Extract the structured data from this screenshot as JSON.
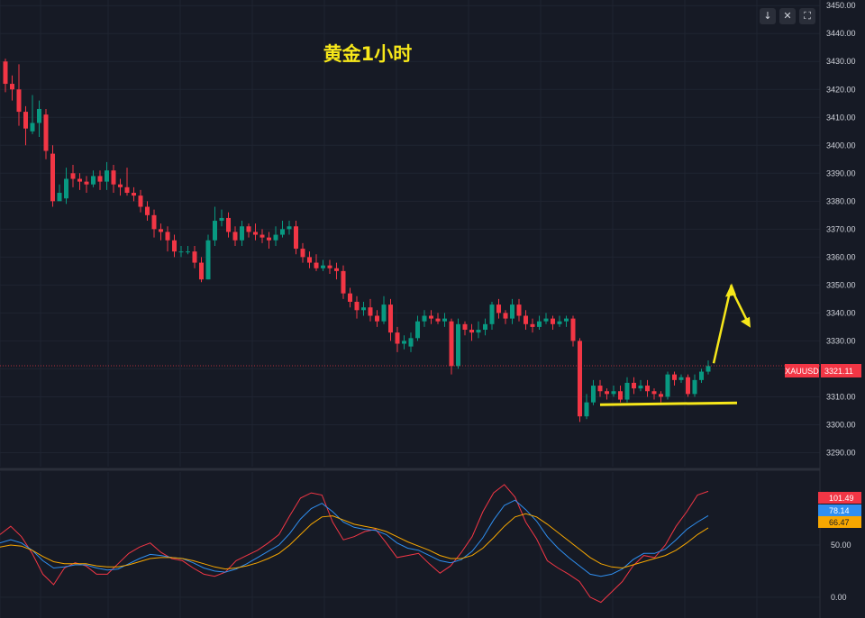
{
  "toolbar": {
    "collapse_icon": "arrow-down-icon",
    "collapse_glyph": "↓",
    "expand_icon": "expand-arrows-icon",
    "expand_glyph": "✕",
    "fullscreen_icon": "fullscreen-icon",
    "fullscreen_glyph": "⛶"
  },
  "chart_data": [
    {
      "type": "candlestick",
      "title": "黄金1小时",
      "symbol": "XAUUSD",
      "current_price": "3321.11",
      "ylim": [
        3285,
        3452
      ],
      "yticks": [
        "3290.00",
        "3300.00",
        "3310.00",
        "3320.00",
        "3330.00",
        "3340.00",
        "3350.00",
        "3360.00",
        "3370.00",
        "3380.00",
        "3390.00",
        "3400.00",
        "3410.00",
        "3420.00",
        "3430.00",
        "3440.00",
        "3450.00"
      ],
      "grid": true,
      "colors": {
        "up": "#089981",
        "down": "#f23645",
        "annotation": "#f6e71a",
        "background": "#161a25"
      },
      "candles": [
        [
          3430,
          3422,
          3431,
          3419
        ],
        [
          3422,
          3420,
          3425,
          3416
        ],
        [
          3420,
          3412,
          3429,
          3407
        ],
        [
          3412,
          3406,
          3414,
          3400
        ],
        [
          3405,
          3408,
          3418,
          3404
        ],
        [
          3408,
          3413,
          3416,
          3403
        ],
        [
          3411,
          3398,
          3413,
          3395
        ],
        [
          3397,
          3380,
          3400,
          3378
        ],
        [
          3380,
          3383,
          3386,
          3382
        ],
        [
          3381,
          3388,
          3392,
          3379
        ],
        [
          3390,
          3388,
          3393,
          3385
        ],
        [
          3388,
          3387,
          3390,
          3384
        ],
        [
          3387,
          3386,
          3389,
          3383
        ],
        [
          3386,
          3389,
          3391,
          3385
        ],
        [
          3389,
          3387,
          3391,
          3384
        ],
        [
          3387,
          3391,
          3394,
          3384
        ],
        [
          3391,
          3386,
          3393,
          3383
        ],
        [
          3386,
          3385,
          3388,
          3382
        ],
        [
          3385,
          3383,
          3392,
          3382
        ],
        [
          3383,
          3382,
          3385,
          3380
        ],
        [
          3382,
          3378,
          3384,
          3376
        ],
        [
          3378,
          3375,
          3380,
          3373
        ],
        [
          3375,
          3370,
          3377,
          3367
        ],
        [
          3370,
          3369,
          3372,
          3366
        ],
        [
          3369,
          3366,
          3371,
          3362
        ],
        [
          3366,
          3362,
          3368,
          3360
        ],
        [
          3362,
          3362,
          3364,
          3360
        ],
        [
          3362,
          3362,
          3364,
          3361
        ],
        [
          3362,
          3358,
          3364,
          3356
        ],
        [
          3358,
          3352,
          3360,
          3351
        ],
        [
          3352,
          3366,
          3368,
          3352
        ],
        [
          3366,
          3373,
          3378,
          3364
        ],
        [
          3373,
          3374,
          3377,
          3371
        ],
        [
          3374,
          3369,
          3376,
          3367
        ],
        [
          3369,
          3366,
          3371,
          3364
        ],
        [
          3366,
          3371,
          3373,
          3364
        ],
        [
          3371,
          3369,
          3372,
          3367
        ],
        [
          3369,
          3368,
          3372,
          3366
        ],
        [
          3368,
          3367,
          3370,
          3365
        ],
        [
          3367,
          3366,
          3369,
          3363
        ],
        [
          3366,
          3368,
          3371,
          3364
        ],
        [
          3368,
          3370,
          3373,
          3367
        ],
        [
          3370,
          3371,
          3373,
          3368
        ],
        [
          3371,
          3363,
          3373,
          3361
        ],
        [
          3363,
          3360,
          3365,
          3358
        ],
        [
          3360,
          3358,
          3362,
          3356
        ],
        [
          3358,
          3356,
          3361,
          3355
        ],
        [
          3356,
          3357,
          3359,
          3355
        ],
        [
          3357,
          3356,
          3359,
          3354
        ],
        [
          3356,
          3355,
          3358,
          3352
        ],
        [
          3355,
          3347,
          3357,
          3345
        ],
        [
          3347,
          3344,
          3349,
          3342
        ],
        [
          3344,
          3341,
          3346,
          3338
        ],
        [
          3341,
          3342,
          3344,
          3339
        ],
        [
          3342,
          3339,
          3345,
          3337
        ],
        [
          3339,
          3337,
          3341,
          3335
        ],
        [
          3337,
          3343,
          3346,
          3336
        ],
        [
          3343,
          3333,
          3345,
          3330
        ],
        [
          3333,
          3329,
          3335,
          3326
        ],
        [
          3329,
          3330,
          3332,
          3327
        ],
        [
          3328,
          3331,
          3333,
          3326
        ],
        [
          3331,
          3337,
          3339,
          3330
        ],
        [
          3337,
          3339,
          3341,
          3335
        ],
        [
          3339,
          3338,
          3341,
          3336
        ],
        [
          3338,
          3337,
          3340,
          3336
        ],
        [
          3337,
          3338,
          3340,
          3335
        ],
        [
          3337,
          3321,
          3338,
          3318
        ],
        [
          3321,
          3336,
          3338,
          3320
        ],
        [
          3336,
          3334,
          3337,
          3332
        ],
        [
          3334,
          3333,
          3336,
          3330
        ],
        [
          3333,
          3334,
          3337,
          3331
        ],
        [
          3334,
          3336,
          3338,
          3332
        ],
        [
          3336,
          3343,
          3344,
          3334
        ],
        [
          3343,
          3340,
          3345,
          3338
        ],
        [
          3340,
          3338,
          3341,
          3336
        ],
        [
          3338,
          3343,
          3345,
          3336
        ],
        [
          3343,
          3339,
          3345,
          3337
        ],
        [
          3339,
          3336,
          3341,
          3334
        ],
        [
          3336,
          3335,
          3338,
          3333
        ],
        [
          3335,
          3337,
          3339,
          3334
        ],
        [
          3337,
          3338,
          3340,
          3336
        ],
        [
          3338,
          3336,
          3339,
          3334
        ],
        [
          3336,
          3337,
          3339,
          3335
        ],
        [
          3337,
          3338,
          3339,
          3335
        ],
        [
          3338,
          3330,
          3339,
          3328
        ],
        [
          3330,
          3303,
          3331,
          3301
        ],
        [
          3303,
          3308,
          3311,
          3302
        ],
        [
          3308,
          3314,
          3316,
          3307
        ],
        [
          3314,
          3312,
          3316,
          3310
        ],
        [
          3312,
          3311,
          3313,
          3309
        ],
        [
          3311,
          3312,
          3314,
          3310
        ],
        [
          3312,
          3309,
          3314,
          3308
        ],
        [
          3309,
          3315,
          3317,
          3308
        ],
        [
          3315,
          3313,
          3317,
          3311
        ],
        [
          3313,
          3314,
          3316,
          3312
        ],
        [
          3314,
          3312,
          3316,
          3310
        ],
        [
          3312,
          3311,
          3313,
          3309
        ],
        [
          3311,
          3310,
          3312,
          3308
        ],
        [
          3310,
          3318,
          3319,
          3309
        ],
        [
          3318,
          3316,
          3319,
          3314
        ],
        [
          3316,
          3317,
          3318,
          3315
        ],
        [
          3317,
          3311,
          3318,
          3310
        ],
        [
          3311,
          3316,
          3318,
          3310
        ],
        [
          3316,
          3319,
          3320,
          3315
        ],
        [
          3319,
          3321,
          3323,
          3318
        ]
      ],
      "support_line_price": 3307.5,
      "projection_arrow": {
        "from": 3322,
        "peak": 3349,
        "end": 3336
      }
    },
    {
      "type": "line",
      "indicator": "oscillator",
      "ylim": [
        -20,
        120
      ],
      "yticks": [
        "50.00",
        "0.00"
      ],
      "current_values": [
        "101.49",
        "78.14",
        "66.47"
      ],
      "series": [
        {
          "color": "#f23645",
          "values": [
            60,
            68,
            58,
            42,
            22,
            12,
            28,
            33,
            30,
            22,
            22,
            32,
            42,
            48,
            52,
            43,
            37,
            35,
            28,
            22,
            20,
            24,
            35,
            40,
            45,
            52,
            60,
            78,
            95,
            100,
            98,
            72,
            55,
            58,
            63,
            65,
            52,
            38,
            40,
            42,
            32,
            23,
            30,
            43,
            58,
            82,
            100,
            108,
            96,
            72,
            56,
            35,
            28,
            22,
            15,
            0,
            -5,
            5,
            15,
            30,
            40,
            38,
            50,
            68,
            82,
            98,
            101.49
          ]
        },
        {
          "color": "#2f8ff0",
          "values": [
            52,
            55,
            52,
            45,
            35,
            28,
            29,
            31,
            31,
            28,
            26,
            27,
            32,
            37,
            41,
            40,
            38,
            37,
            33,
            28,
            25,
            24,
            27,
            32,
            38,
            44,
            50,
            61,
            75,
            85,
            90,
            82,
            72,
            67,
            65,
            64,
            60,
            52,
            47,
            45,
            40,
            35,
            33,
            36,
            44,
            57,
            74,
            88,
            93,
            84,
            73,
            58,
            47,
            38,
            30,
            22,
            20,
            22,
            27,
            36,
            42,
            42,
            46,
            55,
            65,
            72,
            78.14
          ]
        },
        {
          "color": "#f7a700",
          "values": [
            48,
            50,
            49,
            45,
            39,
            34,
            32,
            32,
            32,
            30,
            29,
            29,
            31,
            34,
            37,
            38,
            38,
            37,
            35,
            32,
            29,
            27,
            28,
            30,
            33,
            37,
            42,
            50,
            60,
            70,
            77,
            78,
            74,
            70,
            68,
            66,
            63,
            58,
            53,
            49,
            45,
            40,
            37,
            37,
            40,
            47,
            57,
            68,
            77,
            80,
            77,
            70,
            62,
            54,
            46,
            38,
            32,
            29,
            28,
            31,
            34,
            37,
            40,
            45,
            52,
            60,
            66.47
          ]
        }
      ]
    }
  ]
}
